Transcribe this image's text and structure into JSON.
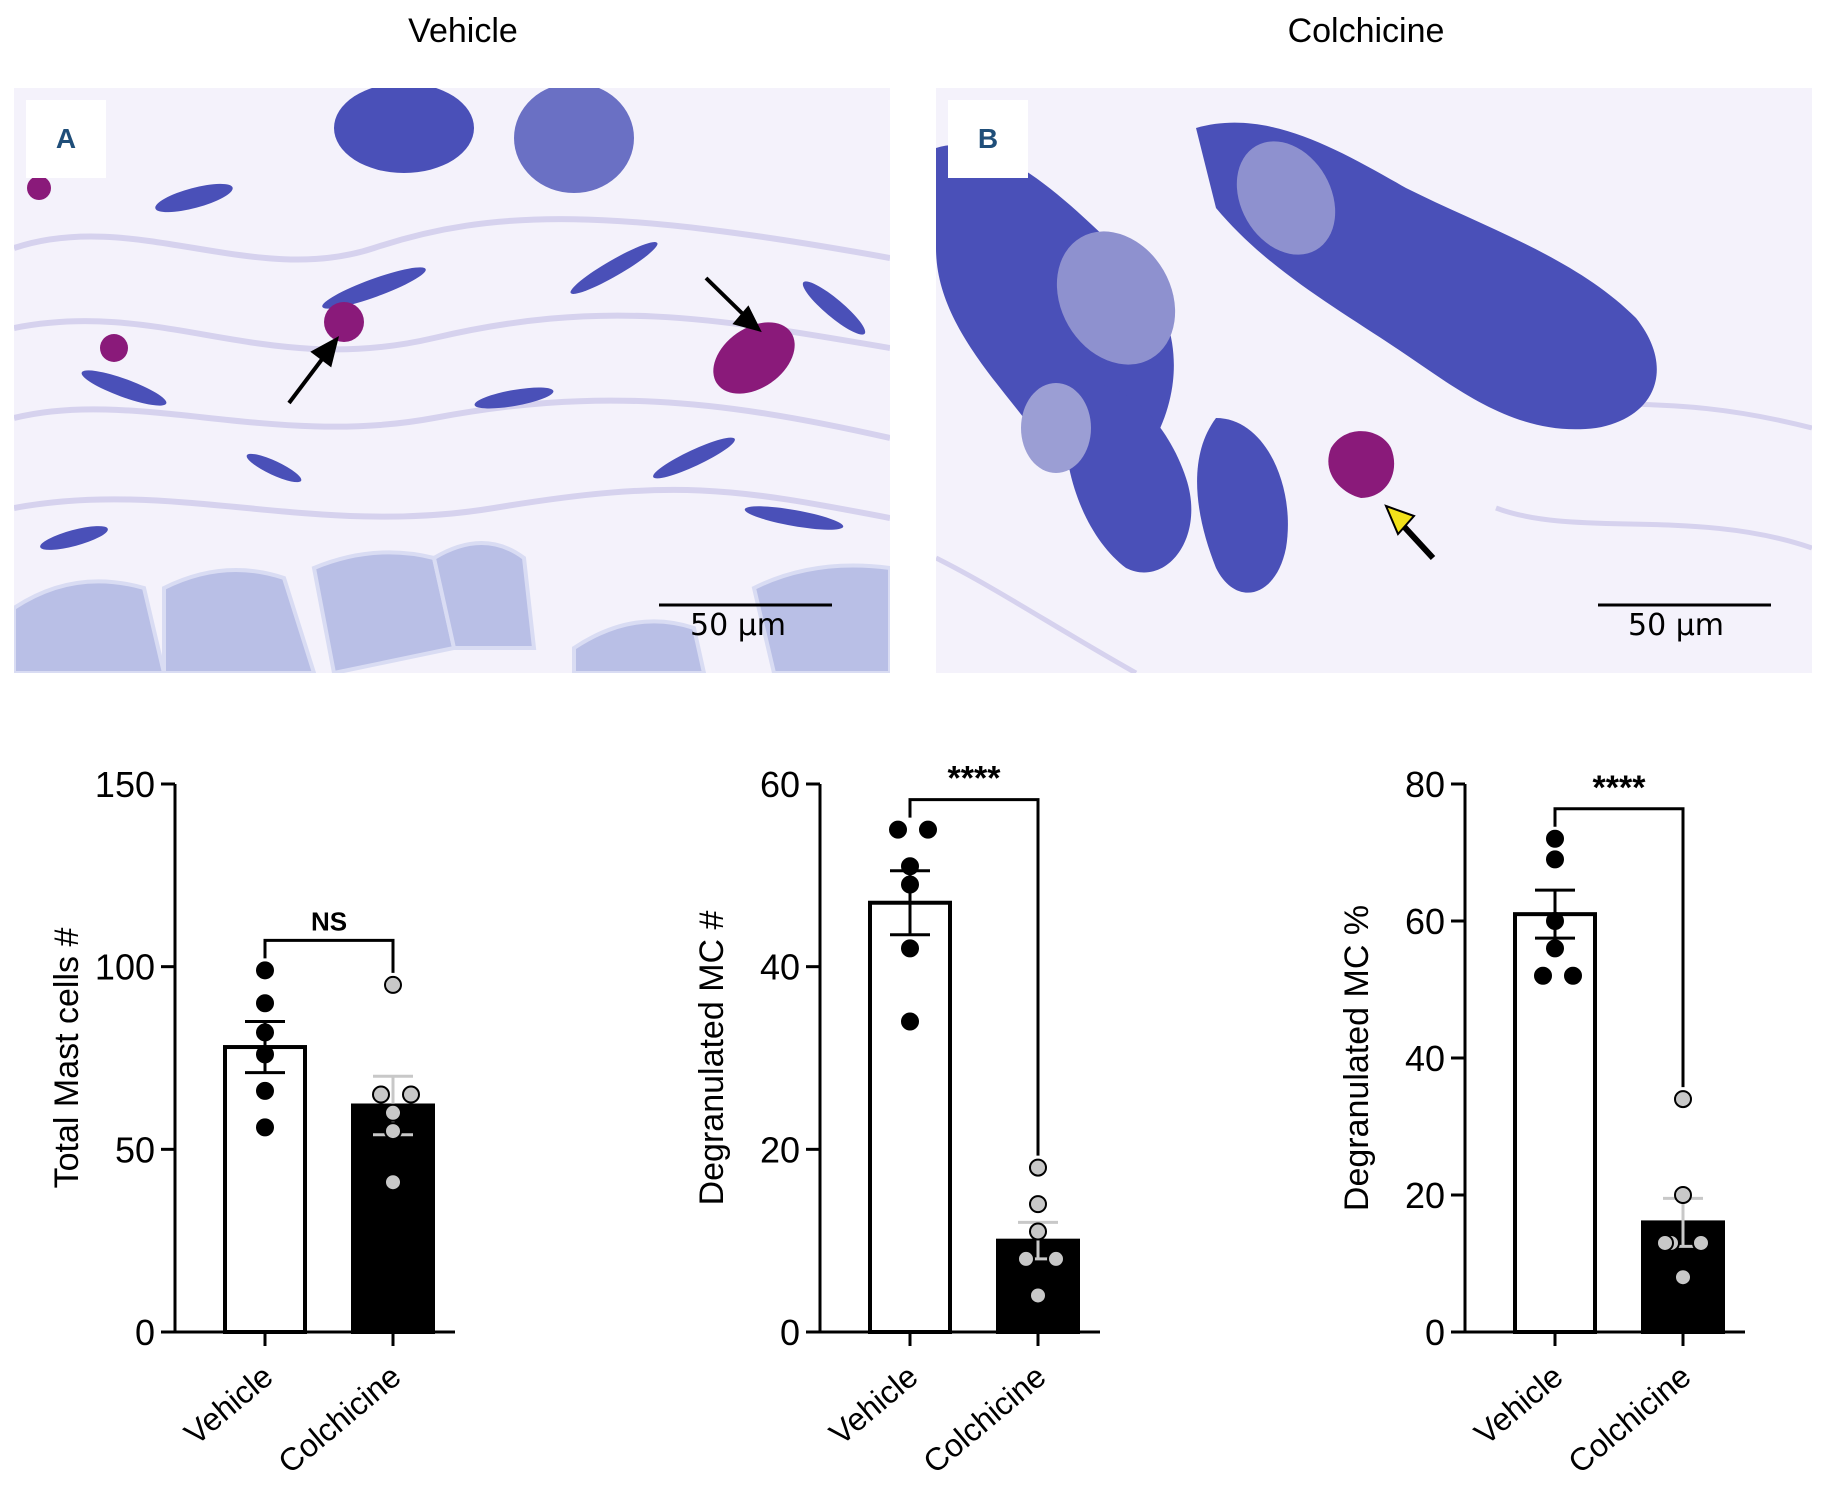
{
  "images": [
    {
      "column_title": "Vehicle",
      "panel_label": "A",
      "scale_bar": "50 μm"
    },
    {
      "column_title": "Colchicine",
      "panel_label": "B",
      "scale_bar": "50 μm"
    }
  ],
  "colors": {
    "tissue_bg": "#f4f2fb",
    "stain_blue": "#4a50b8",
    "stain_light": "#a7aee0",
    "mast_cell": "#8a1a7a",
    "muscle": "#b9bfe6",
    "arrow_yellow": "#f2e21a"
  },
  "chart_data": [
    {
      "type": "bar",
      "ylabel": "Total Mast cells #",
      "categories": [
        "Vehicle",
        "Colchicine"
      ],
      "ylim": [
        0,
        150
      ],
      "yticks": [
        "0",
        "50",
        "100",
        "150"
      ],
      "values": [
        78,
        62
      ],
      "sem": [
        7,
        8
      ],
      "points": [
        [
          99,
          90,
          82,
          76,
          66,
          56
        ],
        [
          95,
          65,
          65,
          60,
          55,
          41
        ]
      ],
      "significance": "NS",
      "bar_fill": [
        "#ffffff",
        "#000000"
      ],
      "point_fill": [
        "#000000",
        "#c8c8c8"
      ]
    },
    {
      "type": "bar",
      "ylabel": "Degranulated MC #",
      "categories": [
        "Vehicle",
        "Colchicine"
      ],
      "ylim": [
        0,
        60
      ],
      "yticks": [
        "0",
        "20",
        "40",
        "60"
      ],
      "values": [
        47,
        10
      ],
      "sem": [
        3.5,
        2
      ],
      "points": [
        [
          55,
          55,
          51,
          49,
          42,
          34
        ],
        [
          18,
          14,
          11,
          8,
          8,
          4
        ]
      ],
      "significance": "****",
      "bar_fill": [
        "#ffffff",
        "#000000"
      ],
      "point_fill": [
        "#000000",
        "#c8c8c8"
      ]
    },
    {
      "type": "bar",
      "ylabel": "Degranulated MC %",
      "categories": [
        "Vehicle",
        "Colchicine"
      ],
      "ylim": [
        0,
        80
      ],
      "yticks": [
        "0",
        "20",
        "40",
        "60",
        "80"
      ],
      "values": [
        61,
        16
      ],
      "sem": [
        3.5,
        3.5
      ],
      "points": [
        [
          72,
          69,
          60,
          56,
          52,
          52
        ],
        [
          34,
          20,
          13,
          13,
          13,
          8
        ]
      ],
      "significance": "****",
      "bar_fill": [
        "#ffffff",
        "#000000"
      ],
      "point_fill": [
        "#000000",
        "#c8c8c8"
      ]
    }
  ]
}
